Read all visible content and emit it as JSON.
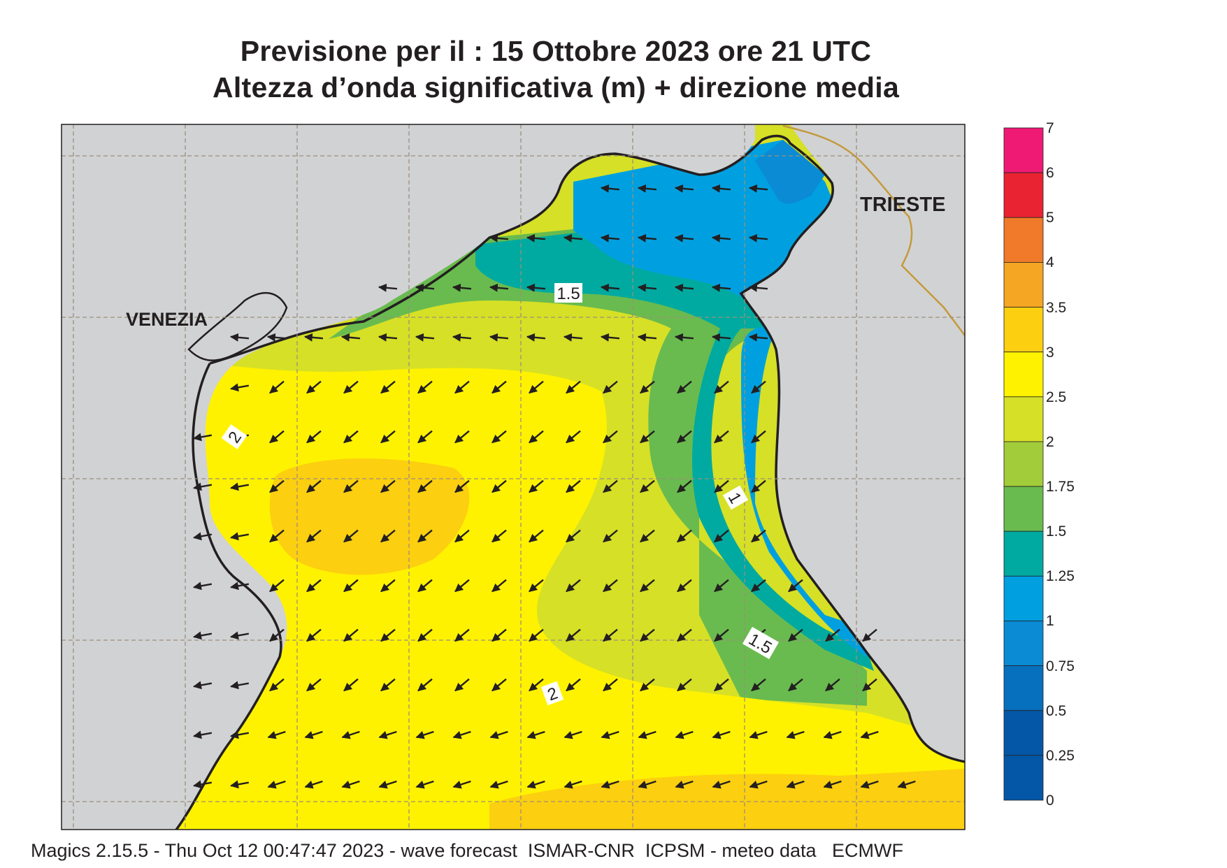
{
  "title_line1": "Previsione per il  :  15  Ottobre  2023   ore 21 UTC",
  "title_line2": "Altezza d’onda significativa (m) + direzione media",
  "cities": [
    {
      "name": "VENEZIA"
    },
    {
      "name": "TRIESTE"
    }
  ],
  "contour_labels": [
    "1.5",
    "2",
    "1",
    "1.5",
    "2"
  ],
  "legend": {
    "levels": [
      "7",
      "6",
      "5",
      "4",
      "3.5",
      "3",
      "2.5",
      "2",
      "1.75",
      "1.5",
      "1.25",
      "1",
      "0.75",
      "0.5",
      "0.25",
      "0"
    ],
    "colors": [
      "#ef1a74",
      "#ea2332",
      "#f07a29",
      "#f5a623",
      "#fccf10",
      "#fff200",
      "#d6e026",
      "#a3cc3a",
      "#69bb4f",
      "#00aaa0",
      "#00a0e0",
      "#0a8bd4",
      "#0770be",
      "#0457a6"
    ]
  },
  "colors": {
    "land": "#d1d2d4",
    "coast": "#231f20",
    "border": "#c49a3c",
    "grid": "#9b8f7a"
  },
  "footer": "Magics 2.15.5 - Thu Oct 12 00:47:47 2023 - wave forecast  ISMAR-CNR  ICPSM - meteo data   ECMWF"
}
